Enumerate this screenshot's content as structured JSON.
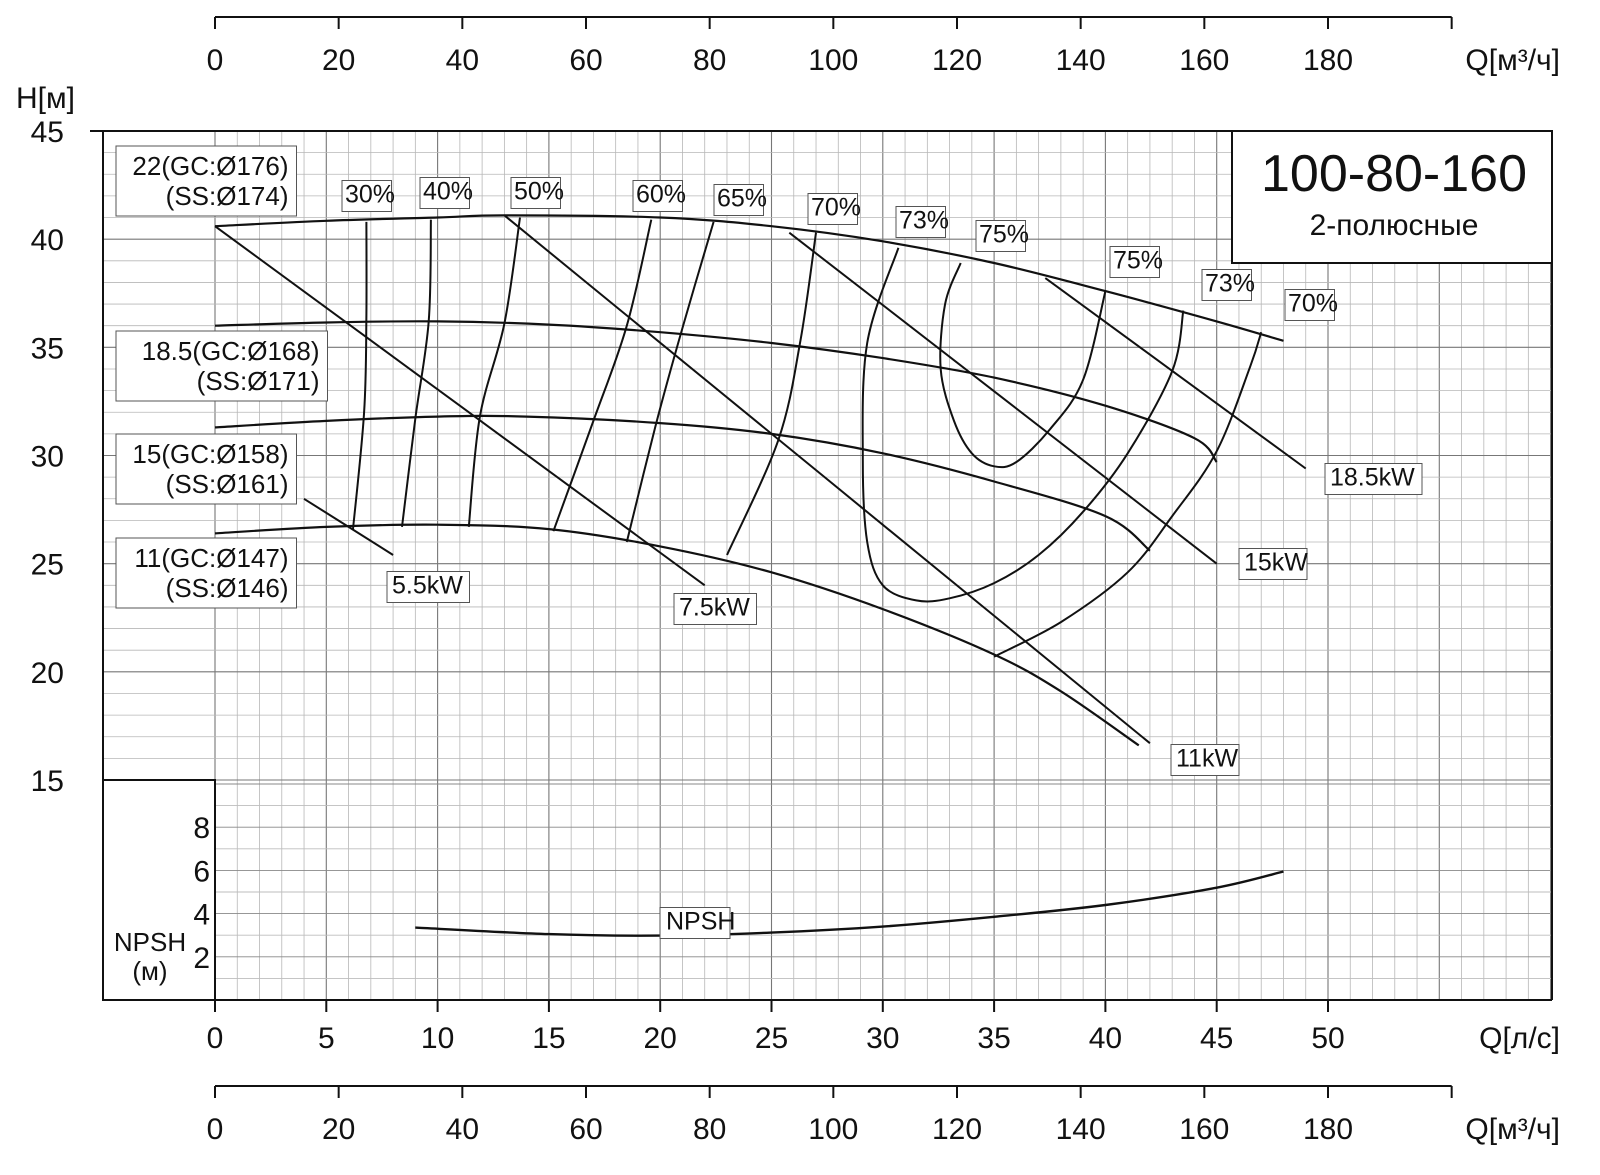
{
  "chart_data": {
    "type": "line",
    "title": "100-80-160",
    "subtitle": "2-полюсные",
    "x_axis": {
      "unit_label": "Q[л/с]",
      "range": [
        0,
        50
      ],
      "ticks": [
        "0",
        "5",
        "10",
        "15",
        "20",
        "25",
        "30",
        "35",
        "40",
        "45",
        "50"
      ]
    },
    "x_axis_secondary": {
      "unit_label": "Q[м³/ч]",
      "range": [
        0,
        180
      ],
      "ticks": [
        "0",
        "20",
        "40",
        "60",
        "80",
        "100",
        "120",
        "140",
        "160",
        "180"
      ]
    },
    "y_axis": {
      "unit_label": "H[м]",
      "range": [
        15,
        45
      ],
      "ticks": [
        "15",
        "20",
        "25",
        "30",
        "35",
        "40",
        "45"
      ]
    },
    "npsh_axis": {
      "label": "NPSH",
      "unit": "(м)",
      "range": [
        0,
        10
      ],
      "ticks": [
        "2",
        "4",
        "6",
        "8"
      ]
    },
    "grid": true,
    "head_curves": [
      {
        "label_line1": "22(GC:Ø176)",
        "label_line2": "(SS:Ø174)",
        "points": [
          [
            0,
            40.6
          ],
          [
            5,
            40.85
          ],
          [
            10,
            41.0
          ],
          [
            13,
            41.1
          ],
          [
            20,
            41.0
          ],
          [
            25,
            40.6
          ],
          [
            30,
            39.9
          ],
          [
            35,
            38.9
          ],
          [
            40,
            37.6
          ],
          [
            45,
            36.2
          ],
          [
            48,
            35.3
          ]
        ]
      },
      {
        "label_line1": "18.5(GC:Ø168)",
        "label_line2": "(SS:Ø171)",
        "points": [
          [
            0,
            36.0
          ],
          [
            5,
            36.15
          ],
          [
            10,
            36.2
          ],
          [
            15,
            36.05
          ],
          [
            20,
            35.7
          ],
          [
            25,
            35.2
          ],
          [
            30,
            34.5
          ],
          [
            35,
            33.6
          ],
          [
            40,
            32.3
          ],
          [
            44,
            30.8
          ],
          [
            45,
            29.7
          ]
        ]
      },
      {
        "label_line1": "15(GC:Ø158)",
        "label_line2": "(SS:Ø161)",
        "points": [
          [
            0,
            31.3
          ],
          [
            5,
            31.6
          ],
          [
            10,
            31.8
          ],
          [
            14,
            31.8
          ],
          [
            20,
            31.5
          ],
          [
            25,
            31.0
          ],
          [
            30,
            30.1
          ],
          [
            35,
            28.8
          ],
          [
            40,
            27.2
          ],
          [
            42,
            25.6
          ]
        ]
      },
      {
        "label_line1": "11(GC:Ø147)",
        "label_line2": "(SS:Ø146)",
        "points": [
          [
            0,
            26.4
          ],
          [
            5,
            26.7
          ],
          [
            10,
            26.8
          ],
          [
            15,
            26.6
          ],
          [
            20,
            25.8
          ],
          [
            25,
            24.6
          ],
          [
            30,
            22.9
          ],
          [
            35,
            20.8
          ],
          [
            38,
            19.1
          ],
          [
            41.5,
            16.6
          ]
        ]
      }
    ],
    "power_lines": [
      {
        "label": "5.5kW",
        "points": [
          [
            4,
            28.0
          ],
          [
            8,
            25.4
          ]
        ]
      },
      {
        "label": "7.5kW",
        "points": [
          [
            0,
            40.6
          ],
          [
            22,
            24.0
          ]
        ]
      },
      {
        "label": "11kW",
        "points": [
          [
            13,
            41.1
          ],
          [
            42,
            16.7
          ]
        ]
      },
      {
        "label": "15kW",
        "points": [
          [
            25.8,
            40.3
          ],
          [
            45,
            25.0
          ]
        ]
      },
      {
        "label": "18.5kW",
        "points": [
          [
            37.3,
            38.2
          ],
          [
            49,
            29.4
          ]
        ]
      }
    ],
    "efficiency_curves": [
      {
        "label": "30%",
        "points": [
          [
            6.8,
            40.8
          ],
          [
            6.8,
            36.5
          ],
          [
            6.7,
            32.0
          ],
          [
            6.2,
            26.6
          ]
        ]
      },
      {
        "label": "40%",
        "points": [
          [
            9.7,
            40.9
          ],
          [
            9.6,
            36.2
          ],
          [
            9.0,
            31.7
          ],
          [
            8.4,
            26.7
          ]
        ]
      },
      {
        "label": "50%",
        "points": [
          [
            13.7,
            41.0
          ],
          [
            13.0,
            36.1
          ],
          [
            11.9,
            31.8
          ],
          [
            11.4,
            26.7
          ]
        ]
      },
      {
        "label": "60%",
        "points": [
          [
            19.6,
            40.9
          ],
          [
            18.5,
            36.0
          ],
          [
            17.0,
            31.6
          ],
          [
            15.2,
            26.5
          ]
        ]
      },
      {
        "label": "65%",
        "points": [
          [
            22.4,
            40.8
          ],
          [
            21.0,
            35.9
          ],
          [
            19.8,
            31.4
          ],
          [
            18.5,
            26.0
          ]
        ]
      },
      {
        "label": "70%",
        "points": [
          [
            27.0,
            40.3
          ],
          [
            26.3,
            35.3
          ],
          [
            25.3,
            30.7
          ],
          [
            23.0,
            25.4
          ]
        ]
      },
      {
        "label": "73%",
        "points": [
          [
            30.7,
            39.6
          ],
          [
            29.3,
            35.2
          ],
          [
            29.1,
            29.8
          ],
          [
            29.3,
            26.0
          ],
          [
            30.0,
            24.0
          ],
          [
            31.5,
            23.3
          ],
          [
            33.0,
            23.4
          ],
          [
            35.0,
            24.1
          ],
          [
            37.0,
            25.4
          ],
          [
            39.0,
            27.4
          ],
          [
            41.0,
            30.1
          ],
          [
            43.0,
            33.9
          ],
          [
            43.5,
            36.7
          ]
        ]
      },
      {
        "label": "75%",
        "points": [
          [
            33.5,
            38.9
          ],
          [
            32.8,
            37.0
          ],
          [
            32.6,
            34.0
          ],
          [
            33.2,
            31.6
          ],
          [
            34.0,
            30.1
          ],
          [
            35.0,
            29.5
          ],
          [
            36.0,
            29.7
          ],
          [
            37.5,
            31.2
          ],
          [
            39.0,
            33.5
          ],
          [
            40.0,
            37.6
          ]
        ]
      },
      {
        "label": "75%",
        "points": []
      },
      {
        "label": "73%",
        "points": []
      },
      {
        "label": "70%",
        "points": [
          [
            35.0,
            20.7
          ],
          [
            38.0,
            22.3
          ],
          [
            41.0,
            24.6
          ],
          [
            43.0,
            27.2
          ],
          [
            45.0,
            30.2
          ],
          [
            46.5,
            34.1
          ],
          [
            47.0,
            35.7
          ]
        ]
      }
    ],
    "npsh_curve": {
      "label": "NPSH",
      "points": [
        [
          9,
          3.35
        ],
        [
          15,
          3.05
        ],
        [
          20,
          2.98
        ],
        [
          25,
          3.12
        ],
        [
          30,
          3.4
        ],
        [
          35,
          3.85
        ],
        [
          40,
          4.4
        ],
        [
          45,
          5.2
        ],
        [
          48,
          5.95
        ]
      ]
    }
  }
}
